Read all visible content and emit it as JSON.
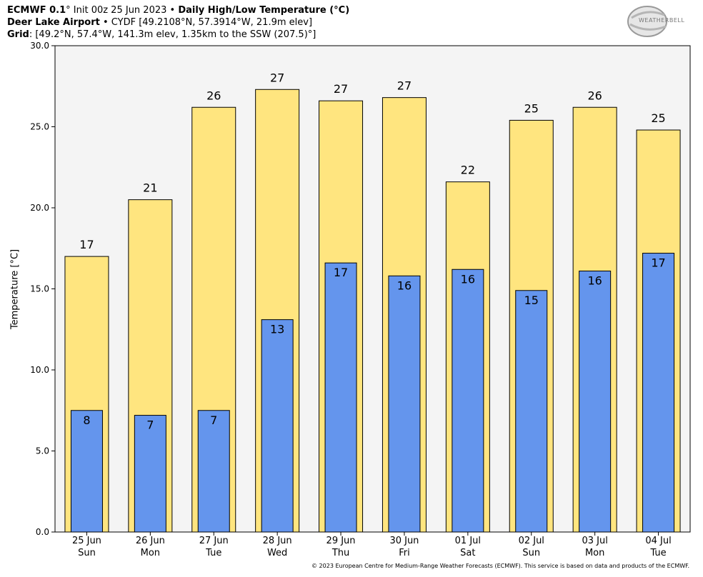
{
  "header": {
    "line1": {
      "model": "ECMWF 0.1",
      "deg": "°",
      "init": " Init 00z 25 Jun 2023",
      "bullet": " • ",
      "product": "Daily High/Low Temperature (°C)"
    },
    "line2": {
      "station": "Deer Lake Airport",
      "bullet": " • ",
      "details": "CYDF [49.2108°N, 57.3914°W, 21.9m elev]"
    },
    "line3": {
      "label": "Grid",
      "details": ": [49.2°N, 57.4°W, 141.3m elev, 1.35km to the SSW (207.5)°]"
    }
  },
  "logo": {
    "text": "WEATHERBELL"
  },
  "footer": "© 2023 European Centre for Medium-Range Weather Forecasts (ECMWF). This service is based on data and products of the ECMWF.",
  "colors": {
    "high_bar": "#FFE57F",
    "low_bar": "#6495ED",
    "plot_bg": "#F4F4F4",
    "outline": "#000000"
  },
  "chart_data": {
    "type": "bar",
    "ylabel": "Temperature [°C]",
    "ylim": [
      0,
      30
    ],
    "yticks": [
      0,
      5,
      10,
      15,
      20,
      25,
      30
    ],
    "ytick_labels": [
      "0.0",
      "5.0",
      "10.0",
      "15.0",
      "20.0",
      "25.0",
      "30.0"
    ],
    "categories": [
      "25 Jun",
      "26 Jun",
      "27 Jun",
      "28 Jun",
      "29 Jun",
      "30 Jun",
      "01 Jul",
      "02 Jul",
      "03 Jul",
      "04 Jul"
    ],
    "weekdays": [
      "Sun",
      "Mon",
      "Tue",
      "Wed",
      "Thu",
      "Fri",
      "Sat",
      "Sun",
      "Mon",
      "Tue"
    ],
    "series": [
      {
        "values": [
          17.0,
          20.5,
          26.2,
          27.3,
          26.6,
          26.8,
          21.6,
          25.4,
          26.2,
          24.8
        ],
        "labels": [
          "17",
          "21",
          "26",
          "27",
          "27",
          "27",
          "22",
          "25",
          "26",
          "25"
        ]
      },
      {
        "values": [
          7.5,
          7.2,
          7.5,
          13.1,
          16.6,
          15.8,
          16.2,
          14.9,
          16.1,
          17.2
        ],
        "labels": [
          "8",
          "7",
          "7",
          "13",
          "17",
          "16",
          "16",
          "15",
          "16",
          "17"
        ]
      }
    ],
    "grid": false,
    "legend": "none"
  }
}
